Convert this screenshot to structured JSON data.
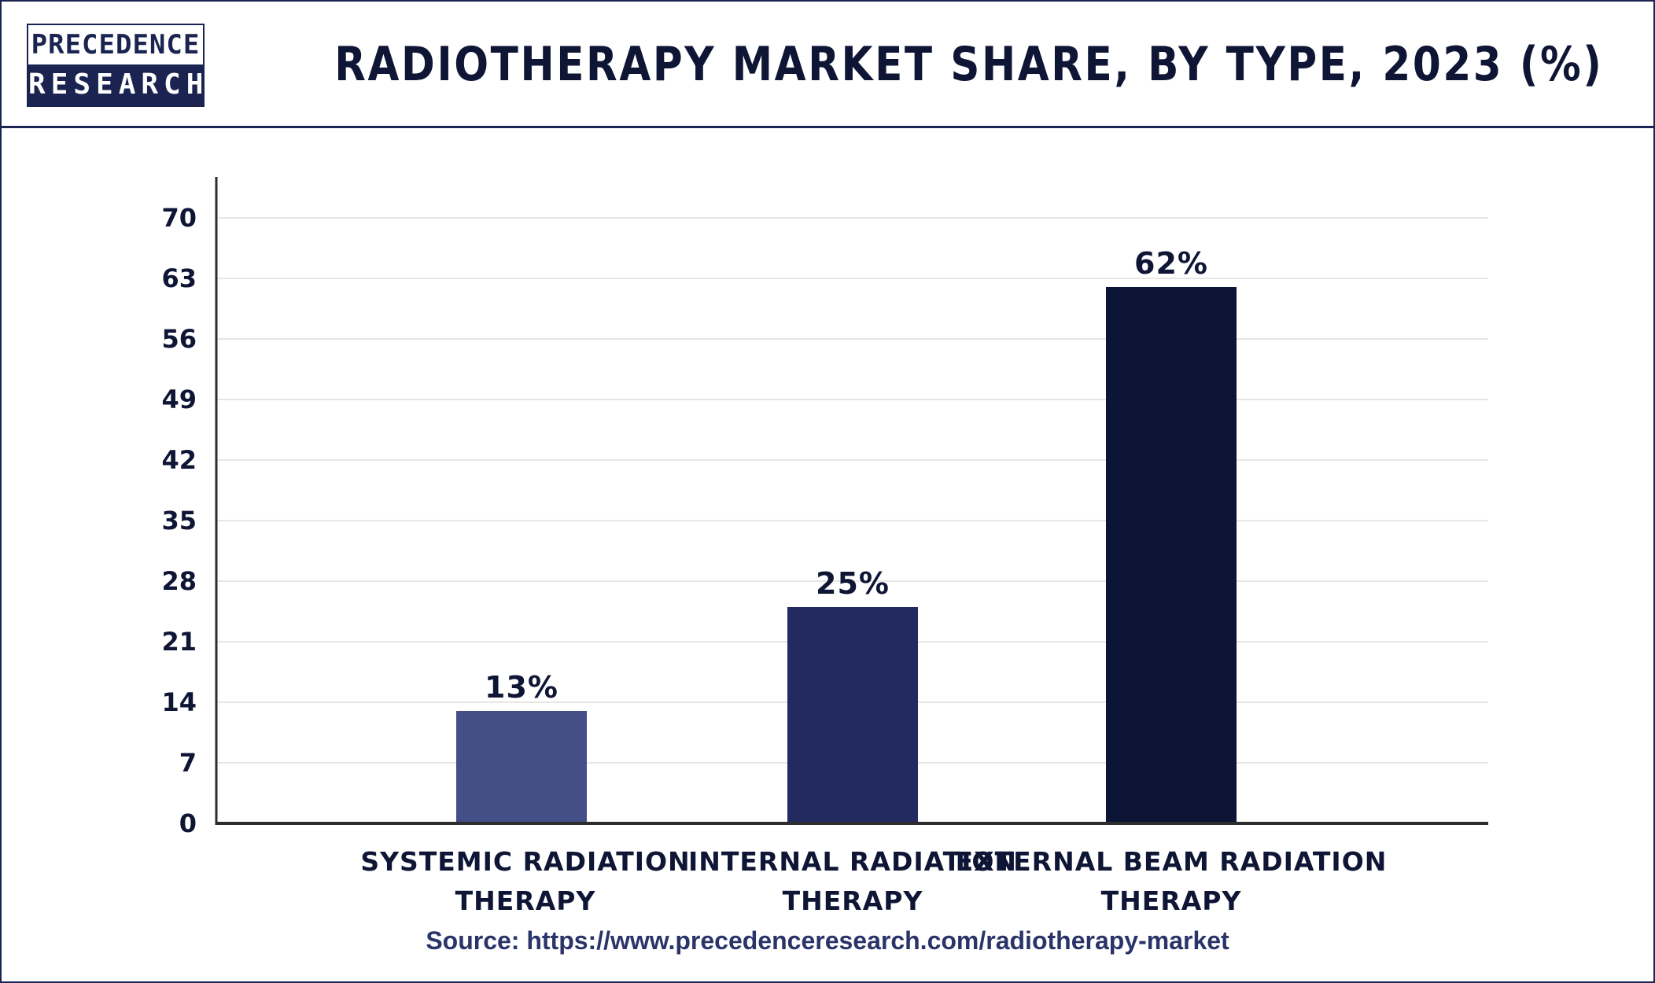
{
  "header": {
    "logo_line1": "PRECEDENCE",
    "logo_line2": "RESEARCH",
    "title": "RADIOTHERAPY MARKET SHARE, BY TYPE, 2023 (%)"
  },
  "source": "Source: https://www.precedenceresearch.com/radiotherapy-market",
  "colors": {
    "brand": "#1b2350",
    "bar_colors": [
      "#434f86",
      "#232a60",
      "#0c1535"
    ],
    "grid": "#e6e6e6",
    "axis": "#2d2d2d"
  },
  "chart_data": {
    "type": "bar",
    "title": "RADIOTHERAPY MARKET SHARE, BY TYPE, 2023 (%)",
    "categories": [
      [
        "SYSTEMIC RADIATION",
        "THERAPY"
      ],
      [
        "INTERNAL RADIATION",
        "THERAPY"
      ],
      [
        "EXTERNAL BEAM RADIATION",
        "THERAPY"
      ]
    ],
    "values": [
      13,
      25,
      62
    ],
    "value_labels": [
      "13%",
      "25%",
      "62%"
    ],
    "y_ticks": [
      "0",
      "7",
      "14",
      "21",
      "28",
      "35",
      "42",
      "49",
      "56",
      "63",
      "70"
    ],
    "ylim": [
      0,
      70
    ],
    "xlabel": "",
    "ylabel": "",
    "grid": true,
    "legend": "none"
  }
}
